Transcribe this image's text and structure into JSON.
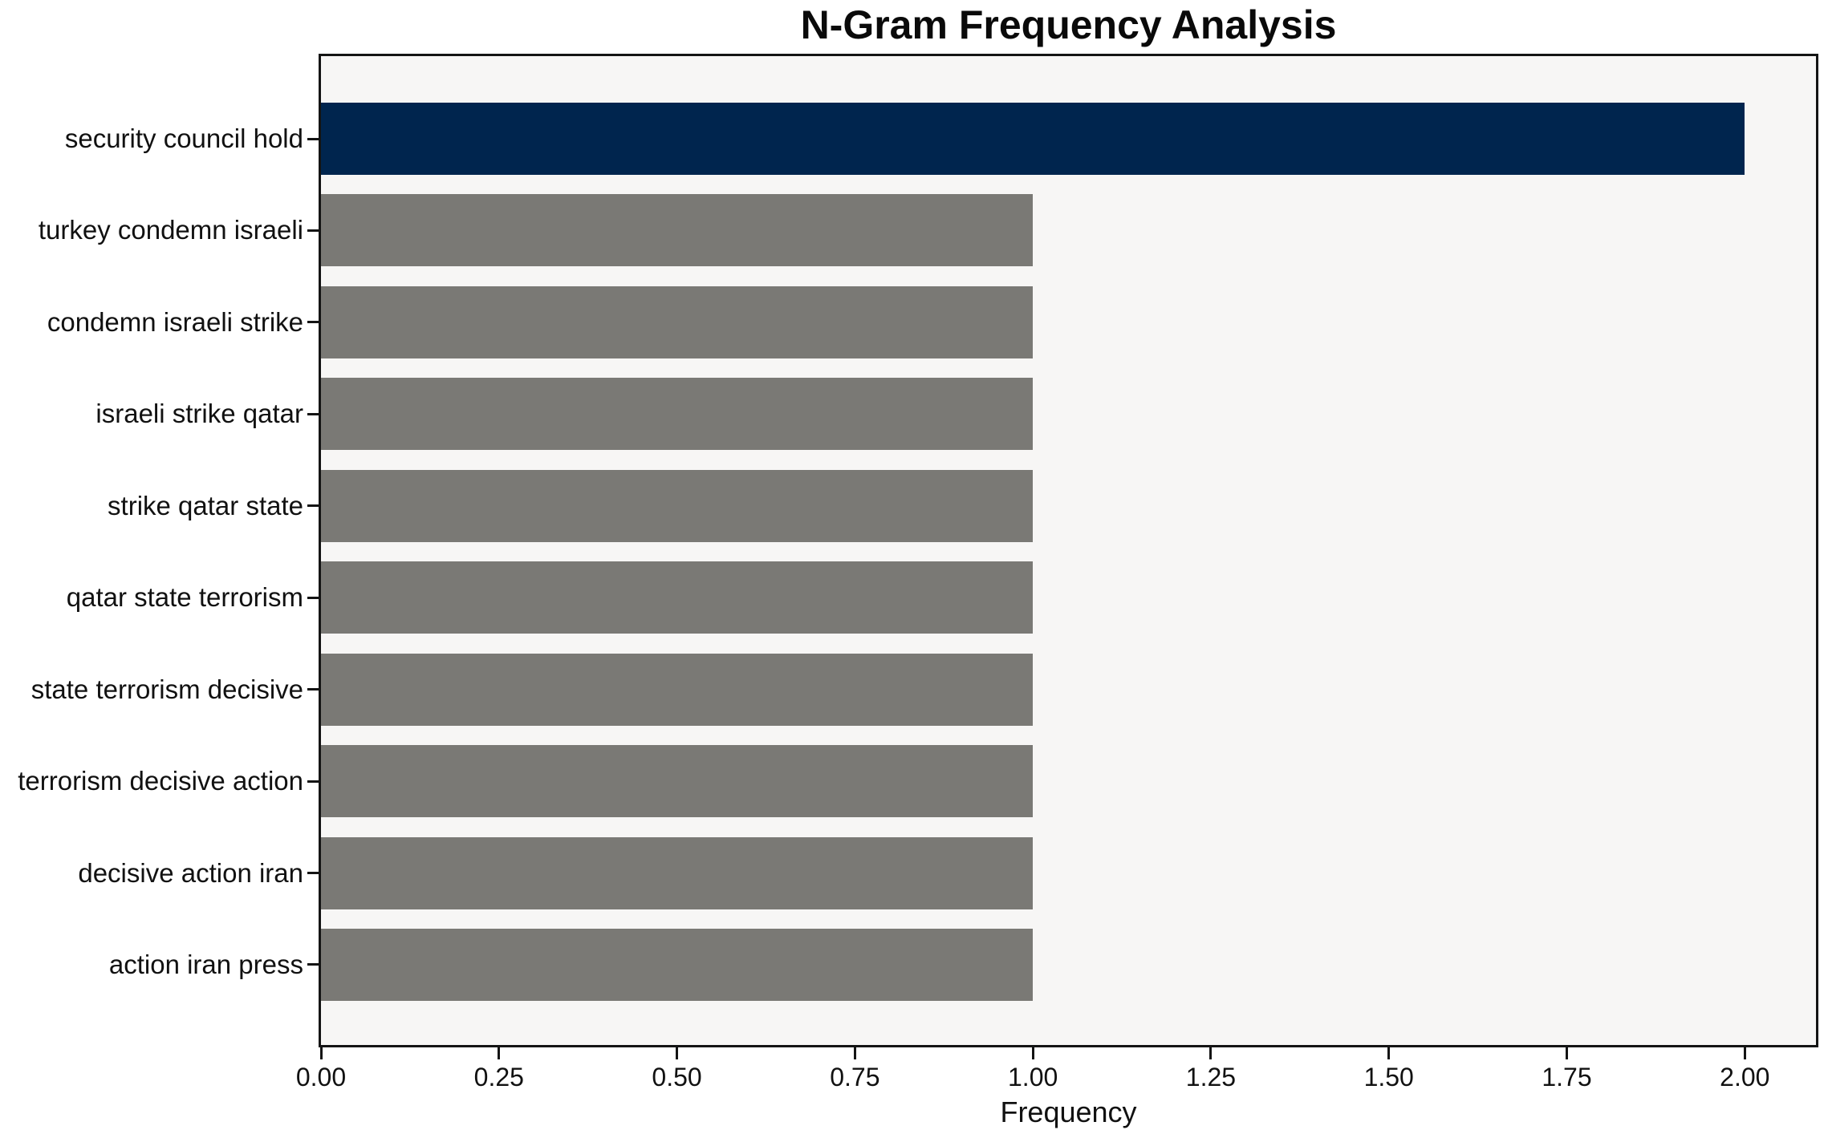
{
  "title": "N-Gram Frequency Analysis",
  "chart_data": {
    "type": "bar",
    "orientation": "horizontal",
    "title": "N-Gram Frequency Analysis",
    "xlabel": "Frequency",
    "ylabel": "",
    "categories": [
      "security council hold",
      "turkey condemn israeli",
      "condemn israeli strike",
      "israeli strike qatar",
      "strike qatar state",
      "qatar state terrorism",
      "state terrorism decisive",
      "terrorism decisive action",
      "decisive action iran",
      "action iran press"
    ],
    "values": [
      2,
      1,
      1,
      1,
      1,
      1,
      1,
      1,
      1,
      1
    ],
    "xlim": [
      0,
      2.1
    ],
    "xticks": [
      {
        "value": 0.0,
        "label": "0.00"
      },
      {
        "value": 0.25,
        "label": "0.25"
      },
      {
        "value": 0.5,
        "label": "0.50"
      },
      {
        "value": 0.75,
        "label": "0.75"
      },
      {
        "value": 1.0,
        "label": "1.00"
      },
      {
        "value": 1.25,
        "label": "1.25"
      },
      {
        "value": 1.5,
        "label": "1.50"
      },
      {
        "value": 1.75,
        "label": "1.75"
      },
      {
        "value": 2.0,
        "label": "2.00"
      }
    ],
    "grid": false,
    "legend": null,
    "colors": {
      "highlight_bar": "#00254e",
      "default_bar": "#7a7975",
      "plot_background": "#f7f6f5",
      "spine": "#141414",
      "text": "#111111"
    },
    "highlight_index": 0
  }
}
